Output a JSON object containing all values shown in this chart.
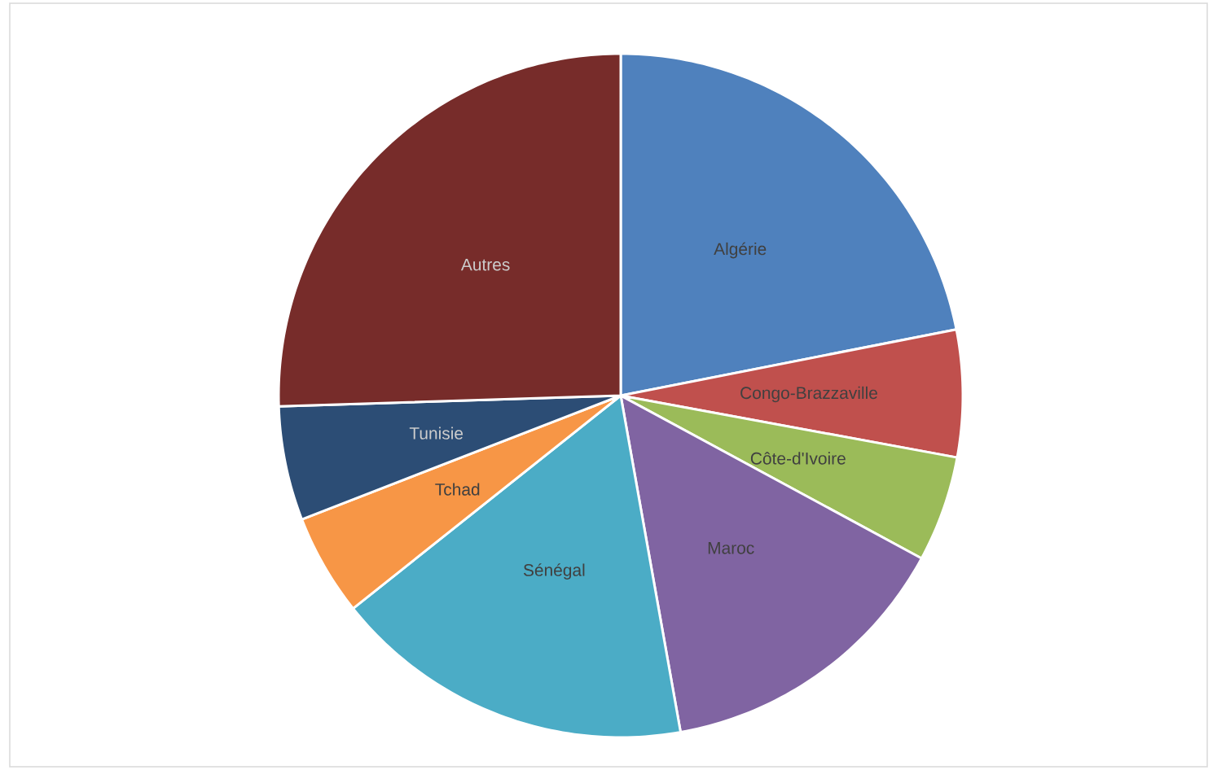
{
  "chart_data": {
    "type": "pie",
    "categories": [
      "Algérie",
      "Congo-Brazzaville",
      "Côte-d'Ivoire",
      "Maroc",
      "Sénégal",
      "Tchad",
      "Tunisie",
      "Autres"
    ],
    "values": [
      21.9,
      6.0,
      5.0,
      14.3,
      17.1,
      4.8,
      5.4,
      25.5
    ],
    "colors": [
      "#4f81bd",
      "#c0504d",
      "#9bbb59",
      "#8064a2",
      "#4bacc6",
      "#f79646",
      "#2c4d75",
      "#772c2a"
    ]
  }
}
